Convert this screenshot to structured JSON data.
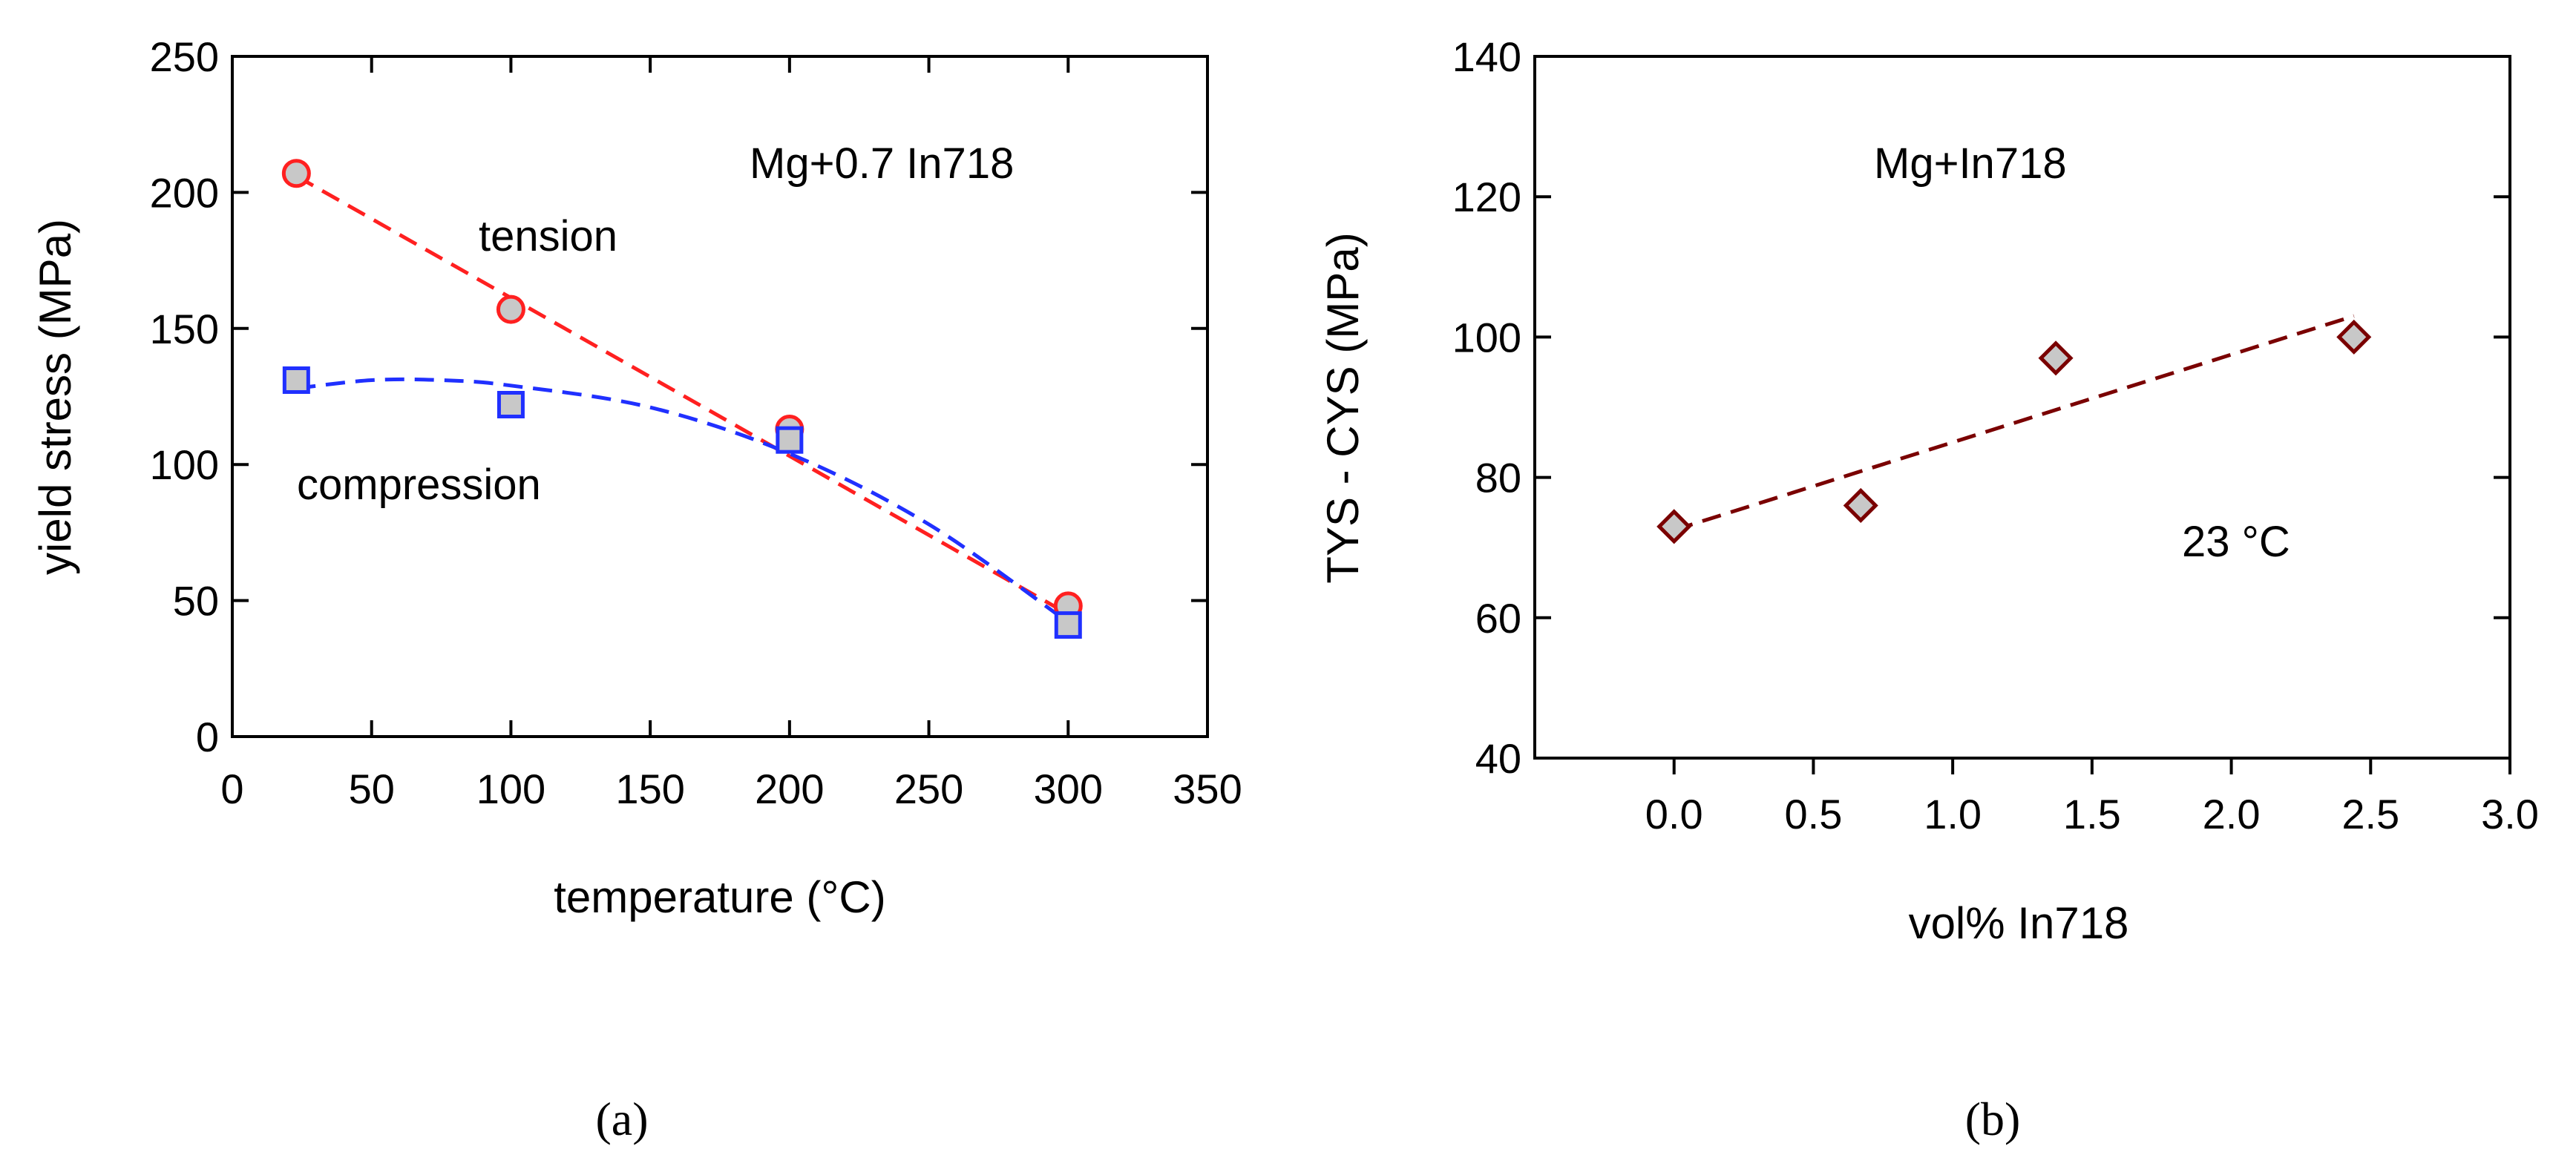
{
  "chart_data": [
    {
      "type": "scatter",
      "panel": "(a)",
      "xlabel": "temperature (°C)",
      "ylabel": "yield stress (MPa)",
      "xlim": [
        0,
        350
      ],
      "ylim": [
        0,
        250
      ],
      "xticks": [
        0,
        50,
        100,
        150,
        200,
        250,
        300,
        350
      ],
      "yticks": [
        0,
        50,
        100,
        150,
        200,
        250
      ],
      "grid": false,
      "annotations": [
        "Mg+0.7 In718",
        "tension",
        "compression"
      ],
      "series": [
        {
          "name": "tension",
          "marker": "circle",
          "color": "#ff2020",
          "fill": "#c8c8c8",
          "x": [
            23,
            100,
            200,
            300
          ],
          "y": [
            207,
            157,
            113,
            48
          ],
          "trend": {
            "style": "dashed",
            "x": [
              23,
              300
            ],
            "y": [
              206,
              45
            ]
          }
        },
        {
          "name": "compression",
          "marker": "square",
          "color": "#2030ff",
          "fill": "#c8c8c8",
          "x": [
            23,
            100,
            200,
            300
          ],
          "y": [
            131,
            122,
            109,
            41
          ],
          "trend": {
            "style": "dashed",
            "x": [
              23,
              50,
              75,
              100,
              150,
              200,
              250,
              300
            ],
            "y": [
              128,
              131,
              131,
              129,
              121,
              104,
              78,
              42
            ]
          }
        }
      ]
    },
    {
      "type": "scatter",
      "panel": "(b)",
      "xlabel": "vol% In718",
      "ylabel": "TYS - CYS (MPa)",
      "xlim": [
        -0.5,
        3.0
      ],
      "ylim": [
        40,
        140
      ],
      "xticks": [
        0.0,
        0.5,
        1.0,
        1.5,
        2.0,
        2.5,
        3.0
      ],
      "xtick_labels": [
        "0.0",
        "0.5",
        "1.0",
        "1.5",
        "2.0",
        "2.5",
        "3.0"
      ],
      "yticks": [
        40,
        60,
        80,
        100,
        120,
        140
      ],
      "grid": false,
      "annotations": [
        "Mg+In718",
        "23 °C"
      ],
      "series": [
        {
          "name": "TYS - CYS",
          "marker": "diamond",
          "color": "#7a0000",
          "fill": "#c8c8c8",
          "x": [
            0.0,
            0.67,
            1.37,
            2.44
          ],
          "y": [
            73,
            76,
            97,
            100
          ],
          "trend": {
            "style": "dashed",
            "x": [
              0.0,
              2.44
            ],
            "y": [
              72.5,
              103
            ]
          }
        }
      ]
    }
  ],
  "captions": [
    "(a)",
    "(b)"
  ]
}
